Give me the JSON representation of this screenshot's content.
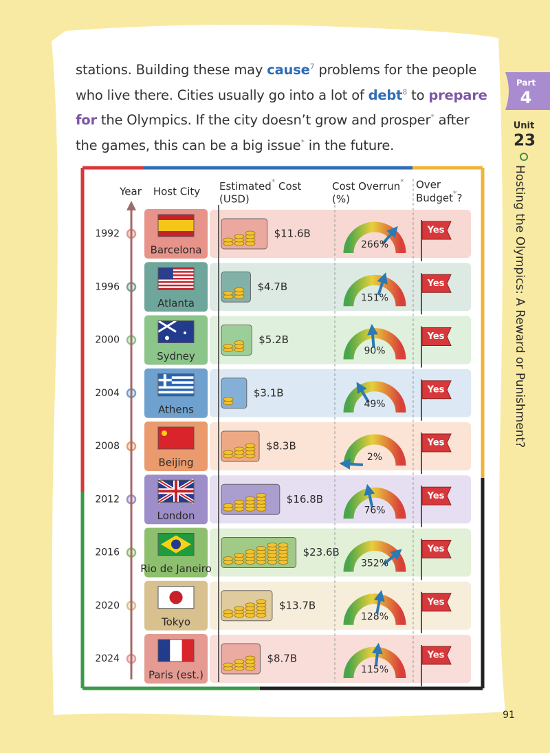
{
  "paragraph": [
    "stations. Building these may ",
    "cause",
    "7",
    " problems for the people who live there. Cities usually go into a lot of ",
    "debt",
    "8",
    " to ",
    "prepare for",
    " the Olympics. If the city doesn’t grow and prosper",
    "*",
    " after the games, this can be a big issue",
    "*",
    " in the future."
  ],
  "side_tab": {
    "part_label": "Part",
    "part_number": "4",
    "unit_label": "Unit",
    "unit_number": "23",
    "unit_title": "Hosting the Olympics: A Reward or Punishment?"
  },
  "table": {
    "headers": {
      "year": "Year",
      "host_city": "Host City",
      "cost": [
        "Estimated",
        "*",
        " Cost",
        "(USD)"
      ],
      "overrun": [
        "Cost Overrun",
        "*",
        "(%)"
      ],
      "over_budget": [
        "Over",
        "Budget",
        "*",
        "?"
      ]
    },
    "rows": [
      [
        "1992",
        "Barcelona",
        "$11.6B",
        "266%",
        "Yes"
      ],
      [
        "1996",
        "Atlanta",
        "$4.7B",
        "151%",
        "Yes"
      ],
      [
        "2000",
        "Sydney",
        "$5.2B",
        "90%",
        "Yes"
      ],
      [
        "2004",
        "Athens",
        "$3.1B",
        "49%",
        "Yes"
      ],
      [
        "2008",
        "Beijing",
        "$8.3B",
        "2%",
        "Yes"
      ],
      [
        "2012",
        "London",
        "$16.8B",
        "76%",
        "Yes"
      ],
      [
        "2016",
        "Rio de Janeiro",
        "$23.6B",
        "352%",
        "Yes"
      ],
      [
        "2020",
        "Tokyo",
        "$13.7B",
        "128%",
        "Yes"
      ],
      [
        "2024",
        "Paris (est.)",
        "$8.7B",
        "115%",
        "Yes"
      ]
    ]
  },
  "page_number": "91"
}
